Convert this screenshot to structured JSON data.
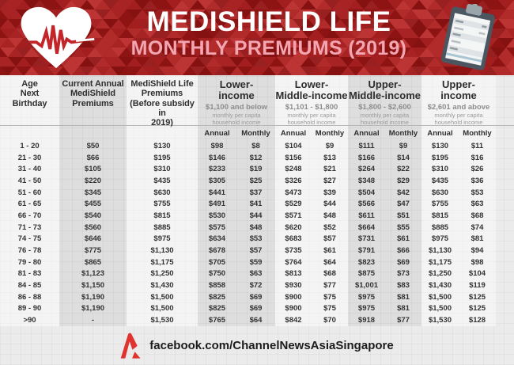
{
  "header": {
    "title": "MEDISHIELD LIFE",
    "subtitle": "MONTHLY PREMIUMS (2019)",
    "colors": {
      "band_base": "#9c1b1b",
      "title_text": "#ffffff",
      "subtitle_text": "#f3a6b2"
    }
  },
  "chart_data": {
    "type": "table",
    "title": "MediShield Life Monthly Premiums (2019)",
    "columns": {
      "age": "Age\nNext\nBirthday",
      "current": "Current Annual\nMediShield\nPremiums",
      "before": "MediShield Life\nPremiums\n(Before subsidy in\n2019)"
    },
    "income_groups": [
      {
        "title": "Lower-\nincome",
        "range": "$1,100 and below",
        "desc": "monthly per capita\nhousehold income"
      },
      {
        "title": "Lower-\nMiddle-income",
        "range": "$1,101 - $1,800",
        "desc": "monthly per capita\nhousehold income"
      },
      {
        "title": "Upper-\nMiddle-income",
        "range": "$1,800 - $2,600",
        "desc": "monthly per capita\nhousehold income"
      },
      {
        "title": "Upper-\nincome",
        "range": "$2,601 and above",
        "desc": "monthly per capita\nhousehold income"
      }
    ],
    "sub_labels": {
      "annual": "Annual",
      "monthly": "Monthly"
    },
    "rows": [
      {
        "age": "1 - 20",
        "current": "$50",
        "before": "$130",
        "values": [
          "$98",
          "$8",
          "$104",
          "$9",
          "$111",
          "$9",
          "$130",
          "$11"
        ]
      },
      {
        "age": "21 - 30",
        "current": "$66",
        "before": "$195",
        "values": [
          "$146",
          "$12",
          "$156",
          "$13",
          "$166",
          "$14",
          "$195",
          "$16"
        ]
      },
      {
        "age": "31 - 40",
        "current": "$105",
        "before": "$310",
        "values": [
          "$233",
          "$19",
          "$248",
          "$21",
          "$264",
          "$22",
          "$310",
          "$26"
        ]
      },
      {
        "age": "41 - 50",
        "current": "$220",
        "before": "$435",
        "values": [
          "$305",
          "$25",
          "$326",
          "$27",
          "$348",
          "$29",
          "$435",
          "$36"
        ]
      },
      {
        "age": "51 - 60",
        "current": "$345",
        "before": "$630",
        "values": [
          "$441",
          "$37",
          "$473",
          "$39",
          "$504",
          "$42",
          "$630",
          "$53"
        ]
      },
      {
        "age": "61 - 65",
        "current": "$455",
        "before": "$755",
        "values": [
          "$491",
          "$41",
          "$529",
          "$44",
          "$566",
          "$47",
          "$755",
          "$63"
        ]
      },
      {
        "age": "66 - 70",
        "current": "$540",
        "before": "$815",
        "values": [
          "$530",
          "$44",
          "$571",
          "$48",
          "$611",
          "$51",
          "$815",
          "$68"
        ]
      },
      {
        "age": "71 - 73",
        "current": "$560",
        "before": "$885",
        "values": [
          "$575",
          "$48",
          "$620",
          "$52",
          "$664",
          "$55",
          "$885",
          "$74"
        ]
      },
      {
        "age": "74 - 75",
        "current": "$646",
        "before": "$975",
        "values": [
          "$634",
          "$53",
          "$683",
          "$57",
          "$731",
          "$61",
          "$975",
          "$81"
        ]
      },
      {
        "age": "76 - 78",
        "current": "$775",
        "before": "$1,130",
        "values": [
          "$678",
          "$57",
          "$735",
          "$61",
          "$791",
          "$66",
          "$1,130",
          "$94"
        ]
      },
      {
        "age": "79 - 80",
        "current": "$865",
        "before": "$1,175",
        "values": [
          "$705",
          "$59",
          "$764",
          "$64",
          "$823",
          "$69",
          "$1,175",
          "$98"
        ]
      },
      {
        "age": "81 - 83",
        "current": "$1,123",
        "before": "$1,250",
        "values": [
          "$750",
          "$63",
          "$813",
          "$68",
          "$875",
          "$73",
          "$1,250",
          "$104"
        ]
      },
      {
        "age": "84 - 85",
        "current": "$1,150",
        "before": "$1,430",
        "values": [
          "$858",
          "$72",
          "$930",
          "$77",
          "$1,001",
          "$83",
          "$1,430",
          "$119"
        ]
      },
      {
        "age": "86 - 88",
        "current": "$1,190",
        "before": "$1,500",
        "values": [
          "$825",
          "$69",
          "$900",
          "$75",
          "$975",
          "$81",
          "$1,500",
          "$125"
        ]
      },
      {
        "age": "89 - 90",
        "current": "$1,190",
        "before": "$1,500",
        "values": [
          "$825",
          "$69",
          "$900",
          "$75",
          "$975",
          "$81",
          "$1,500",
          "$125"
        ]
      },
      {
        "age": ">90",
        "current": "-",
        "before": "$1,530",
        "values": [
          "$765",
          "$64",
          "$842",
          "$70",
          "$918",
          "$77",
          "$1,530",
          "$128"
        ]
      }
    ]
  },
  "footer": {
    "handle": "facebook.com/ChannelNewsAsiaSingapore",
    "logo_color": "#e0332d"
  }
}
